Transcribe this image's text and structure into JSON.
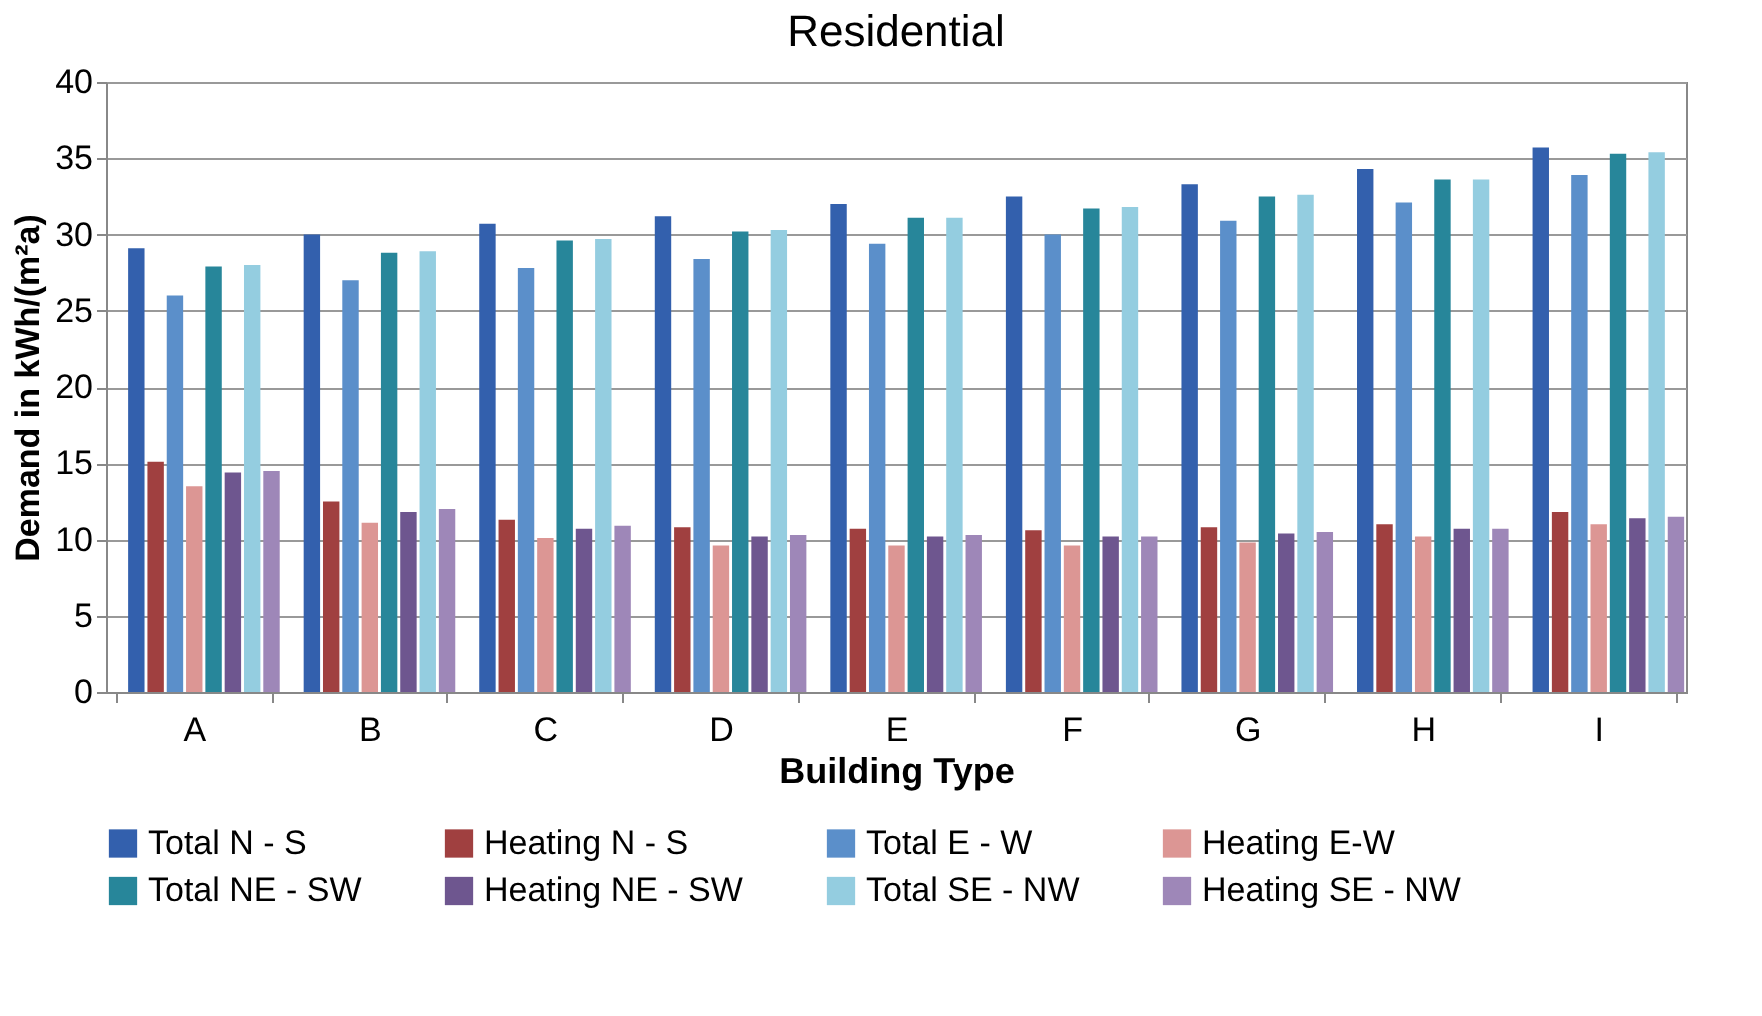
{
  "chart_data": {
    "type": "bar",
    "title": "Residential",
    "xlabel": "Building Type",
    "ylabel": "Demand in kWh/(m²a)",
    "categories": [
      "A",
      "B",
      "C",
      "D",
      "E",
      "F",
      "G",
      "H",
      "I"
    ],
    "series": [
      {
        "name": "Total N - S",
        "color": "#3360ad",
        "values": [
          29.1,
          30.0,
          30.7,
          31.2,
          32.0,
          32.5,
          33.3,
          34.3,
          35.7
        ]
      },
      {
        "name": "Heating N - S",
        "color": "#a04040",
        "values": [
          15.1,
          12.5,
          11.3,
          10.8,
          10.7,
          10.6,
          10.8,
          11.0,
          11.8
        ]
      },
      {
        "name": "Total E - W",
        "color": "#5b8fca",
        "values": [
          26.0,
          27.0,
          27.8,
          28.4,
          29.4,
          30.0,
          30.9,
          32.1,
          33.9
        ]
      },
      {
        "name": "Heating E-W",
        "color": "#dc9694",
        "values": [
          13.5,
          11.1,
          10.1,
          9.6,
          9.6,
          9.6,
          9.8,
          10.2,
          11.0
        ]
      },
      {
        "name": "Total NE - SW",
        "color": "#27869a",
        "values": [
          27.9,
          28.8,
          29.6,
          30.2,
          31.1,
          31.7,
          32.5,
          33.6,
          35.3
        ]
      },
      {
        "name": "Heating NE - SW",
        "color": "#6e568f",
        "values": [
          14.4,
          11.8,
          10.7,
          10.2,
          10.2,
          10.2,
          10.4,
          10.7,
          11.4
        ]
      },
      {
        "name": "Total SE - NW",
        "color": "#94cde0",
        "values": [
          28.0,
          28.9,
          29.7,
          30.3,
          31.1,
          31.8,
          32.6,
          33.6,
          35.4
        ]
      },
      {
        "name": "Heating SE - NW",
        "color": "#9e87b8",
        "values": [
          14.5,
          12.0,
          10.9,
          10.3,
          10.3,
          10.2,
          10.5,
          10.7,
          11.5
        ]
      }
    ],
    "ylim": [
      0,
      40
    ],
    "yticks": [
      0,
      5,
      10,
      15,
      20,
      25,
      30,
      35,
      40
    ],
    "grid": "y",
    "legend": "bottom"
  }
}
